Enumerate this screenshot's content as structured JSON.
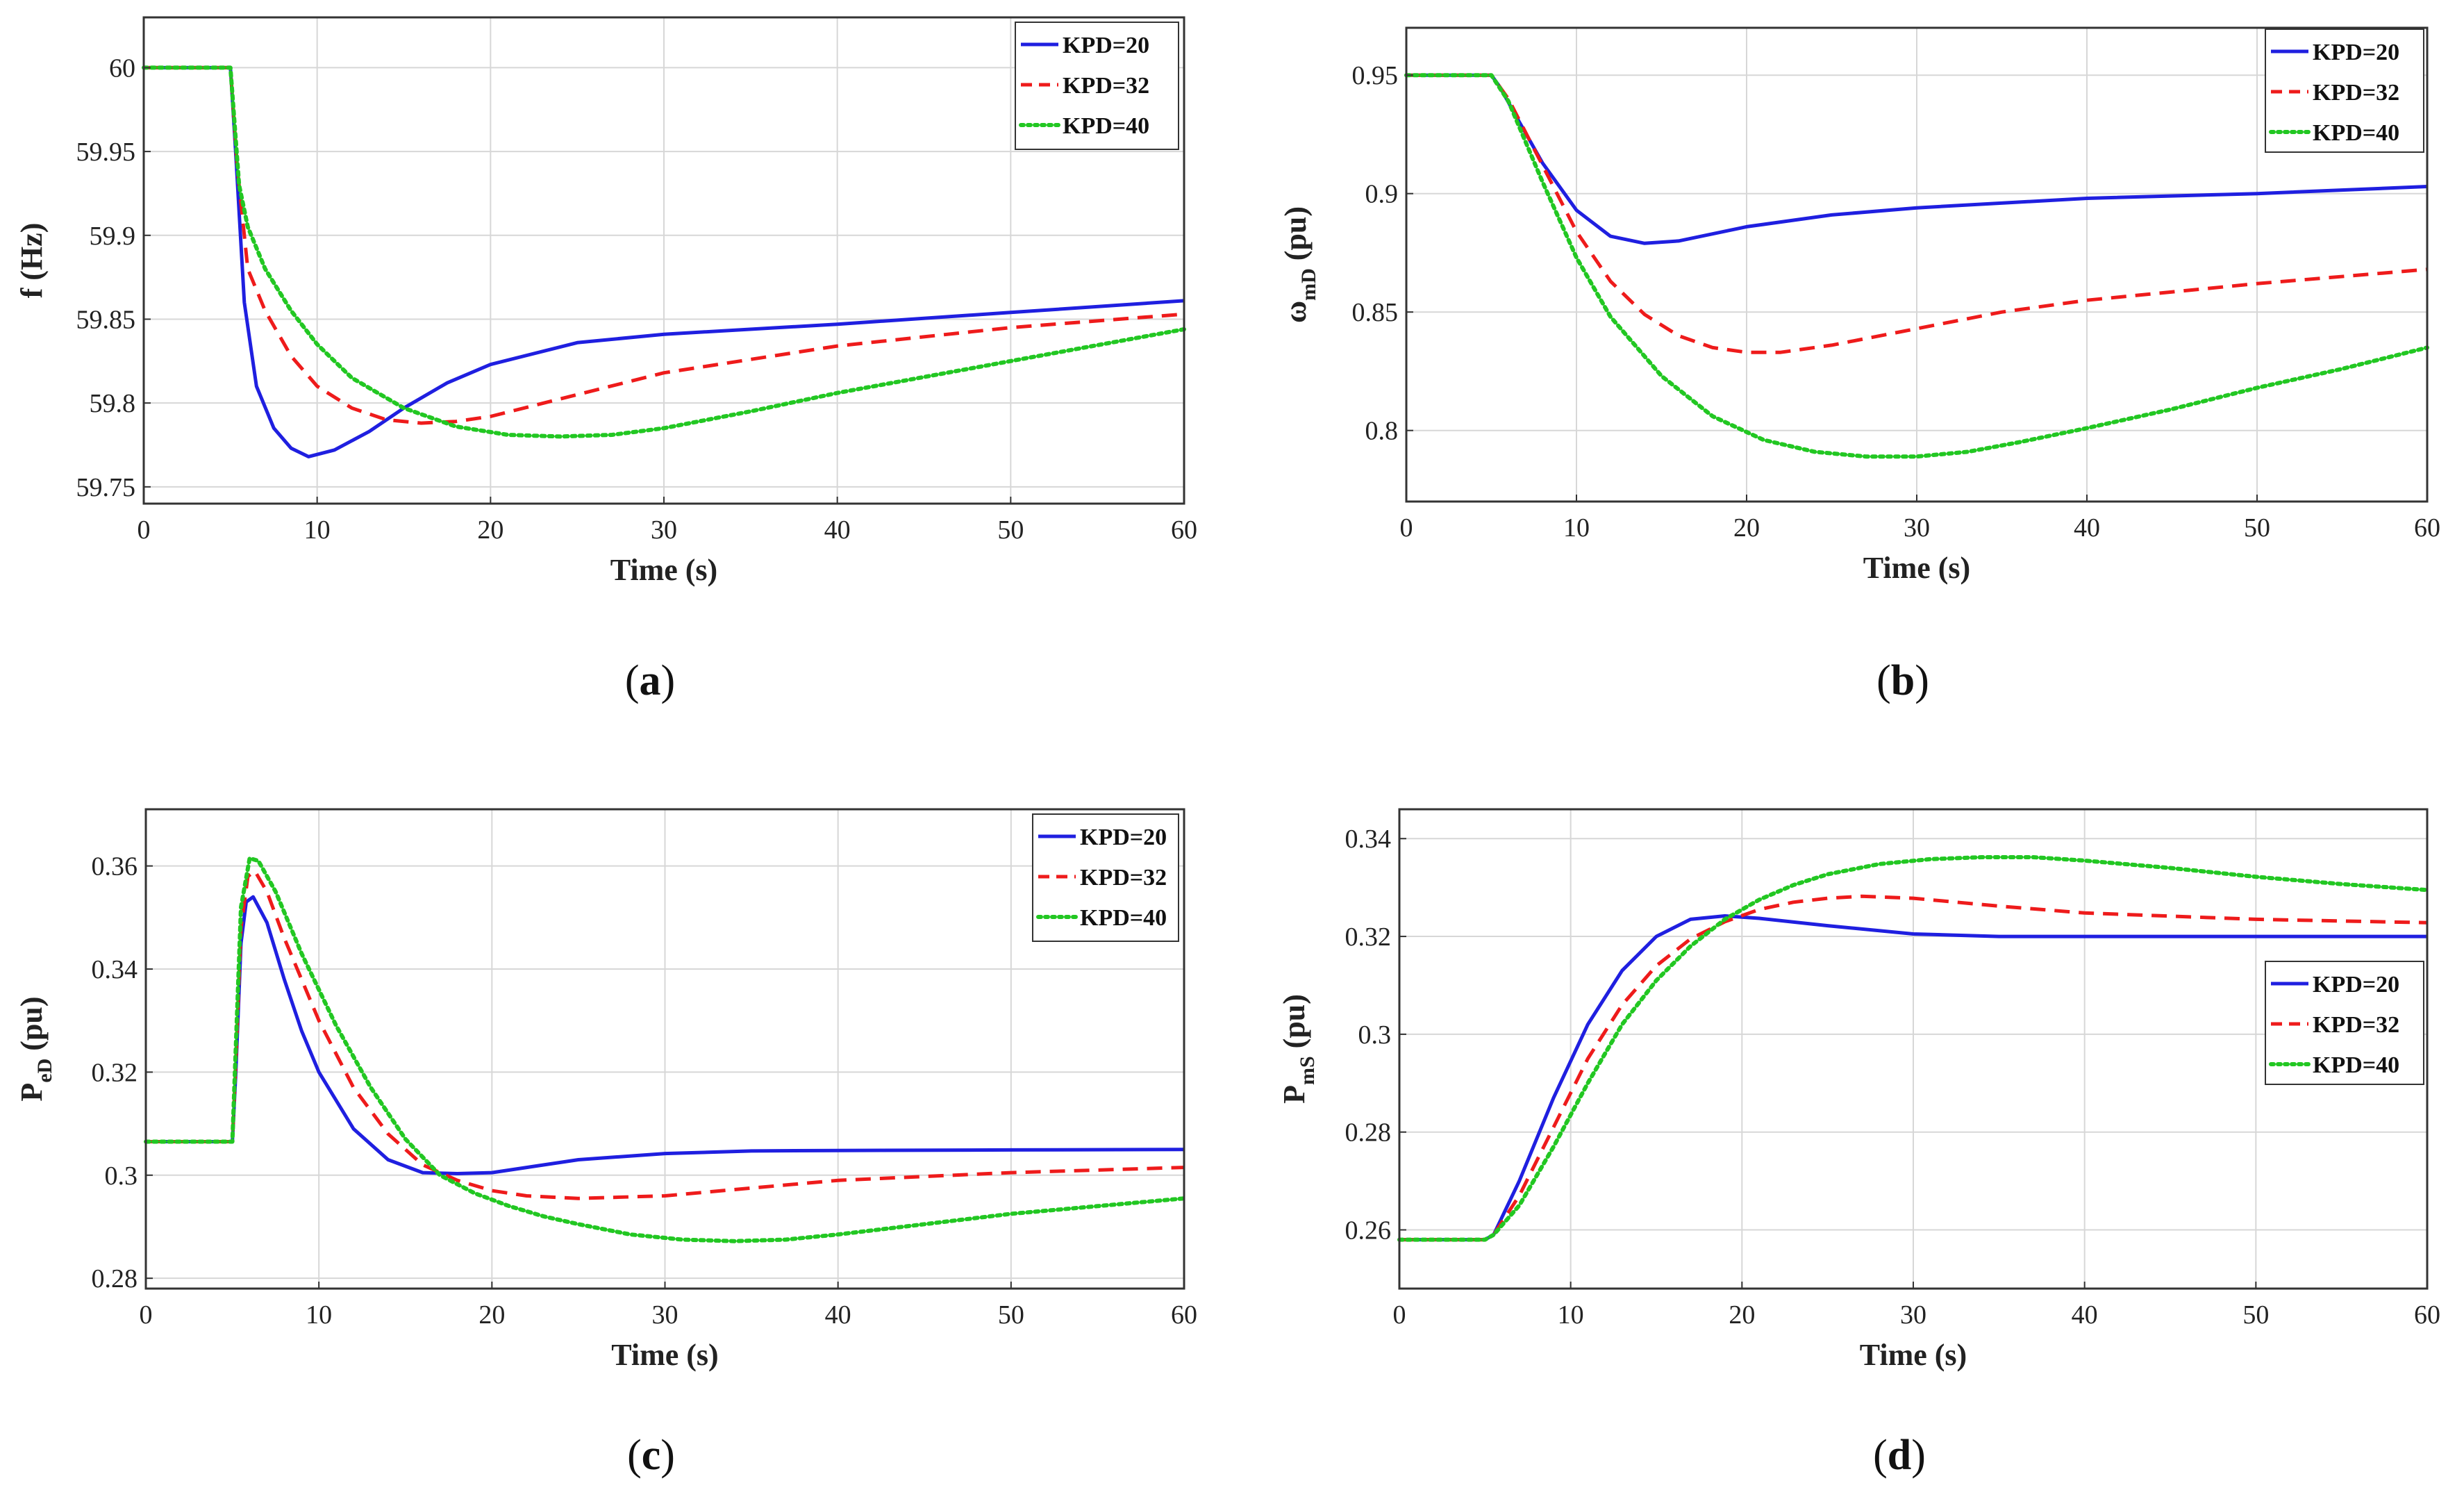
{
  "figure": {
    "background": "#ffffff"
  },
  "series_styles": {
    "KPD=20": {
      "color": "#1f1fe0",
      "dash": "solid"
    },
    "KPD=32": {
      "color": "#ee1b1b",
      "dash": "dashed"
    },
    "KPD=40": {
      "color": "#22c722",
      "dash": "dotted"
    }
  },
  "chart_data": [
    {
      "type": "line",
      "panel": "a",
      "caption": "(a)",
      "xlabel": "Time (s)",
      "ylabel": {
        "main": "f (Hz)",
        "sub": ""
      },
      "xlim": [
        0,
        60
      ],
      "ylim": [
        59.74,
        60.03
      ],
      "xticks": [
        0,
        10,
        20,
        30,
        40,
        50,
        60
      ],
      "yticks": [
        59.75,
        59.8,
        59.85,
        59.9,
        59.95,
        60
      ],
      "ytick_labels": [
        "59.75",
        "59.8",
        "59.85",
        "59.9",
        "59.95",
        "60"
      ],
      "grid": true,
      "legend_position": "top-right",
      "series": [
        {
          "name": "KPD=20",
          "x": [
            0,
            5,
            5.3,
            5.8,
            6.5,
            7.5,
            8.5,
            9.5,
            11,
            13,
            15,
            17.5,
            20,
            25,
            30,
            40,
            50,
            60
          ],
          "y": [
            60,
            60,
            59.95,
            59.86,
            59.81,
            59.785,
            59.773,
            59.768,
            59.772,
            59.783,
            59.797,
            59.812,
            59.823,
            59.836,
            59.841,
            59.847,
            59.854,
            59.861
          ]
        },
        {
          "name": "KPD=32",
          "x": [
            0,
            5,
            5.4,
            6,
            7,
            8.5,
            10,
            12,
            14,
            16,
            18,
            20,
            25,
            30,
            40,
            50,
            60
          ],
          "y": [
            60,
            60,
            59.94,
            59.88,
            59.855,
            59.828,
            59.81,
            59.797,
            59.79,
            59.788,
            59.789,
            59.792,
            59.805,
            59.818,
            59.834,
            59.845,
            59.853
          ]
        },
        {
          "name": "KPD=40",
          "x": [
            0,
            5,
            5.5,
            6,
            7,
            8.5,
            10,
            12,
            15,
            18,
            21,
            24,
            27,
            30,
            35,
            40,
            50,
            60
          ],
          "y": [
            60,
            60,
            59.93,
            59.905,
            59.88,
            59.855,
            59.835,
            59.815,
            59.797,
            59.786,
            59.781,
            59.78,
            59.781,
            59.785,
            59.795,
            59.806,
            59.825,
            59.844
          ]
        }
      ]
    },
    {
      "type": "line",
      "panel": "b",
      "caption": "(b)",
      "xlabel": "Time (s)",
      "ylabel": {
        "main": "ω",
        "sub": "mD",
        "rest": " (pu)"
      },
      "xlim": [
        0,
        60
      ],
      "ylim": [
        0.77,
        0.97
      ],
      "xticks": [
        0,
        10,
        20,
        30,
        40,
        50,
        60
      ],
      "yticks": [
        0.8,
        0.85,
        0.9,
        0.95
      ],
      "ytick_labels": [
        "0.8",
        "0.85",
        "0.9",
        "0.95"
      ],
      "grid": true,
      "legend_position": "top-right",
      "series": [
        {
          "name": "KPD=20",
          "x": [
            0,
            5,
            5.5,
            6.5,
            8,
            10,
            12,
            14,
            16,
            18,
            20,
            25,
            30,
            40,
            50,
            60
          ],
          "y": [
            0.95,
            0.95,
            0.945,
            0.932,
            0.913,
            0.893,
            0.882,
            0.879,
            0.88,
            0.883,
            0.886,
            0.891,
            0.894,
            0.898,
            0.9,
            0.903
          ]
        },
        {
          "name": "KPD=32",
          "x": [
            0,
            5,
            6,
            8,
            10,
            12,
            14,
            16,
            18,
            20,
            22,
            25,
            30,
            35,
            40,
            50,
            60
          ],
          "y": [
            0.95,
            0.95,
            0.94,
            0.912,
            0.884,
            0.863,
            0.849,
            0.84,
            0.835,
            0.833,
            0.833,
            0.836,
            0.843,
            0.85,
            0.855,
            0.862,
            0.868
          ]
        },
        {
          "name": "KPD=40",
          "x": [
            0,
            5,
            6,
            8,
            10,
            12,
            15,
            18,
            21,
            24,
            27,
            30,
            33,
            36,
            40,
            45,
            50,
            55,
            60
          ],
          "y": [
            0.95,
            0.95,
            0.939,
            0.905,
            0.873,
            0.848,
            0.823,
            0.806,
            0.796,
            0.791,
            0.789,
            0.789,
            0.791,
            0.795,
            0.801,
            0.809,
            0.818,
            0.826,
            0.835
          ]
        }
      ]
    },
    {
      "type": "line",
      "panel": "c",
      "caption": "(c)",
      "xlabel": "Time (s)",
      "ylabel": {
        "main": "P",
        "sub": "eD",
        "rest": " (pu)"
      },
      "xlim": [
        0,
        60
      ],
      "ylim": [
        0.278,
        0.371
      ],
      "xticks": [
        0,
        10,
        20,
        30,
        40,
        50,
        60
      ],
      "yticks": [
        0.28,
        0.3,
        0.32,
        0.34,
        0.36
      ],
      "ytick_labels": [
        "0.28",
        "0.3",
        "0.32",
        "0.34",
        "0.36"
      ],
      "grid": true,
      "legend_position": "top-right",
      "series": [
        {
          "name": "KPD=20",
          "x": [
            0,
            5,
            5.2,
            5.5,
            5.8,
            6.2,
            7,
            8,
            9,
            10,
            12,
            14,
            16,
            18,
            20,
            25,
            30,
            35,
            40,
            50,
            60
          ],
          "y": [
            0.3065,
            0.3065,
            0.32,
            0.345,
            0.353,
            0.354,
            0.349,
            0.338,
            0.328,
            0.32,
            0.309,
            0.303,
            0.3005,
            0.3003,
            0.3005,
            0.303,
            0.3042,
            0.3047,
            0.3048,
            0.3049,
            0.305
          ]
        },
        {
          "name": "KPD=32",
          "x": [
            0,
            5,
            5.2,
            5.5,
            5.9,
            6.3,
            7,
            8,
            10,
            12,
            14,
            16,
            18,
            20,
            22,
            25,
            30,
            35,
            40,
            50,
            60
          ],
          "y": [
            0.3065,
            0.3065,
            0.322,
            0.348,
            0.358,
            0.359,
            0.355,
            0.346,
            0.33,
            0.317,
            0.308,
            0.302,
            0.299,
            0.297,
            0.296,
            0.2955,
            0.296,
            0.2975,
            0.299,
            0.3005,
            0.3015
          ]
        },
        {
          "name": "KPD=40",
          "x": [
            0,
            5,
            5.2,
            5.5,
            6,
            6.5,
            7.5,
            9,
            11,
            13,
            15,
            17,
            19,
            21,
            23,
            25,
            28,
            31,
            34,
            37,
            40,
            45,
            50,
            55,
            60
          ],
          "y": [
            0.3065,
            0.3065,
            0.325,
            0.352,
            0.3615,
            0.361,
            0.355,
            0.343,
            0.329,
            0.317,
            0.307,
            0.3,
            0.2965,
            0.294,
            0.292,
            0.2905,
            0.2885,
            0.2875,
            0.2872,
            0.2875,
            0.2885,
            0.2905,
            0.2925,
            0.294,
            0.2955
          ]
        }
      ]
    },
    {
      "type": "line",
      "panel": "d",
      "caption": "(d)",
      "xlabel": "Time (s)",
      "ylabel": {
        "main": "P",
        "sub": "mS",
        "rest": " (pu)"
      },
      "xlim": [
        0,
        60
      ],
      "ylim": [
        0.248,
        0.346
      ],
      "xticks": [
        0,
        10,
        20,
        30,
        40,
        50,
        60
      ],
      "yticks": [
        0.26,
        0.28,
        0.3,
        0.32,
        0.34
      ],
      "ytick_labels": [
        "0.26",
        "0.28",
        "0.3",
        "0.32",
        "0.34"
      ],
      "grid": true,
      "legend_position": "right",
      "series": [
        {
          "name": "KPD=20",
          "x": [
            0,
            5,
            5.5,
            7,
            9,
            11,
            13,
            15,
            17,
            19,
            21,
            25,
            30,
            35,
            40,
            50,
            60
          ],
          "y": [
            0.258,
            0.258,
            0.259,
            0.27,
            0.287,
            0.302,
            0.313,
            0.32,
            0.3235,
            0.3242,
            0.3237,
            0.3222,
            0.3205,
            0.32,
            0.32,
            0.32,
            0.32
          ]
        },
        {
          "name": "KPD=32",
          "x": [
            0,
            5,
            5.5,
            7,
            9,
            11,
            13,
            15,
            17,
            19,
            21,
            23,
            25,
            27,
            30,
            35,
            40,
            50,
            60
          ],
          "y": [
            0.258,
            0.258,
            0.259,
            0.267,
            0.281,
            0.295,
            0.306,
            0.314,
            0.3195,
            0.323,
            0.3255,
            0.327,
            0.3278,
            0.3282,
            0.3278,
            0.3262,
            0.3248,
            0.3235,
            0.3228
          ]
        },
        {
          "name": "KPD=40",
          "x": [
            0,
            5,
            5.5,
            7,
            9,
            11,
            13,
            15,
            17,
            19,
            21,
            23,
            25,
            28,
            31,
            34,
            37,
            40,
            45,
            50,
            55,
            60
          ],
          "y": [
            0.258,
            0.258,
            0.259,
            0.265,
            0.277,
            0.29,
            0.302,
            0.311,
            0.318,
            0.3235,
            0.3275,
            0.3305,
            0.3327,
            0.3348,
            0.3358,
            0.3362,
            0.3362,
            0.3355,
            0.334,
            0.3322,
            0.3307,
            0.3295
          ]
        }
      ]
    }
  ]
}
